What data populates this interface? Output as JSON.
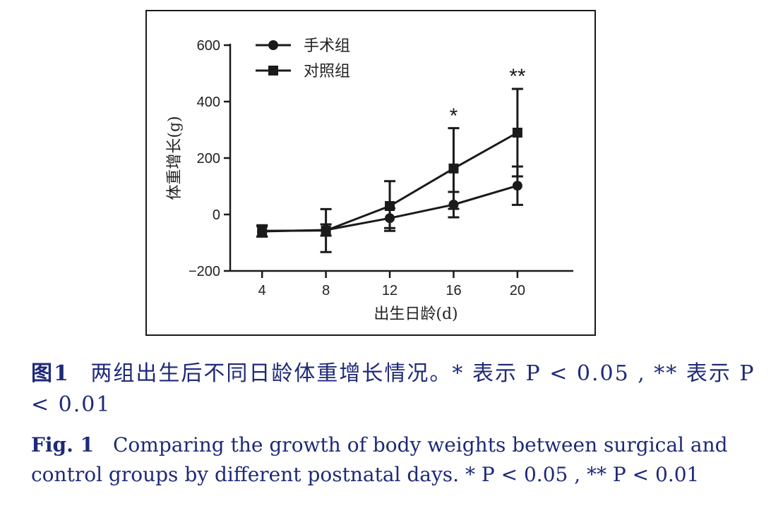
{
  "chart_data": {
    "type": "line",
    "x": [
      4,
      8,
      12,
      16,
      20
    ],
    "x_ticks": [
      "4",
      "8",
      "12",
      "16",
      "20"
    ],
    "xlim": [
      2,
      23.5
    ],
    "y_ticks": [
      "600",
      "400",
      "200",
      "0",
      "−200"
    ],
    "ylim": [
      -200,
      600
    ],
    "xlabel": "出生日龄(d)",
    "ylabel": "体重增长(g)",
    "grid": false,
    "legend_position": "top-left",
    "series": [
      {
        "name": "手术组",
        "marker": "circle",
        "values": [
          -60,
          -55,
          -13,
          35,
          102
        ],
        "error": [
          18,
          20,
          35,
          45,
          68
        ]
      },
      {
        "name": "对照组",
        "marker": "square",
        "values": [
          -58,
          -57,
          30,
          163,
          290
        ],
        "error": [
          20,
          76,
          88,
          143,
          155
        ]
      }
    ],
    "annotations": [
      {
        "x": 16,
        "y": 305,
        "text": "*"
      },
      {
        "x": 20,
        "y": 445,
        "text": "**"
      }
    ],
    "colors": {
      "line": "#1a1a1a",
      "caption": "#1e2a78"
    }
  },
  "caption": {
    "cn_label": "图1",
    "cn_text": "两组出生后不同日龄体重增长情况。* 表示 P < 0.05 , ** 表示 P < 0.01",
    "en_label": "Fig. 1",
    "en_text": "Comparing the growth of body weights between surgical and control groups by different postnatal days. * P < 0.05 , ** P < 0.01"
  }
}
